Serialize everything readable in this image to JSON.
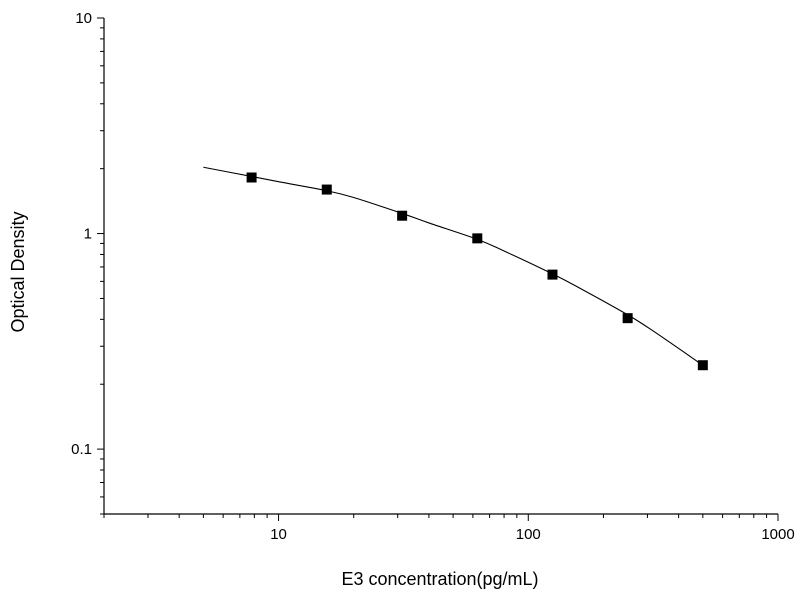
{
  "chart_data": {
    "type": "scatter",
    "title": "",
    "xlabel": "E3 concentration(pg/mL)",
    "ylabel": "Optical Density",
    "x_scale": "log",
    "y_scale": "log",
    "xlim": [
      2,
      1000
    ],
    "ylim": [
      0.05,
      10
    ],
    "x_tick_labels": [
      "10",
      "100",
      "1000"
    ],
    "y_tick_labels": [
      "0.1",
      "1",
      "10"
    ],
    "grid": false,
    "legend": "none",
    "marker": "square",
    "series": [
      {
        "x": [
          7.8,
          15.6,
          31.25,
          62.5,
          125,
          250,
          500
        ],
        "y": [
          1.82,
          1.6,
          1.21,
          0.95,
          0.645,
          0.405,
          0.245
        ]
      }
    ],
    "fit_curve": {
      "x": [
        5,
        7.8,
        10,
        15.6,
        20,
        31.25,
        40,
        62.5,
        80,
        125,
        160,
        250,
        320,
        500
      ],
      "y": [
        2.03,
        1.84,
        1.74,
        1.58,
        1.47,
        1.24,
        1.12,
        0.94,
        0.83,
        0.65,
        0.56,
        0.42,
        0.35,
        0.245
      ]
    },
    "colors": {
      "marker": "#000000",
      "line": "#000000",
      "axis": "#000000"
    }
  }
}
